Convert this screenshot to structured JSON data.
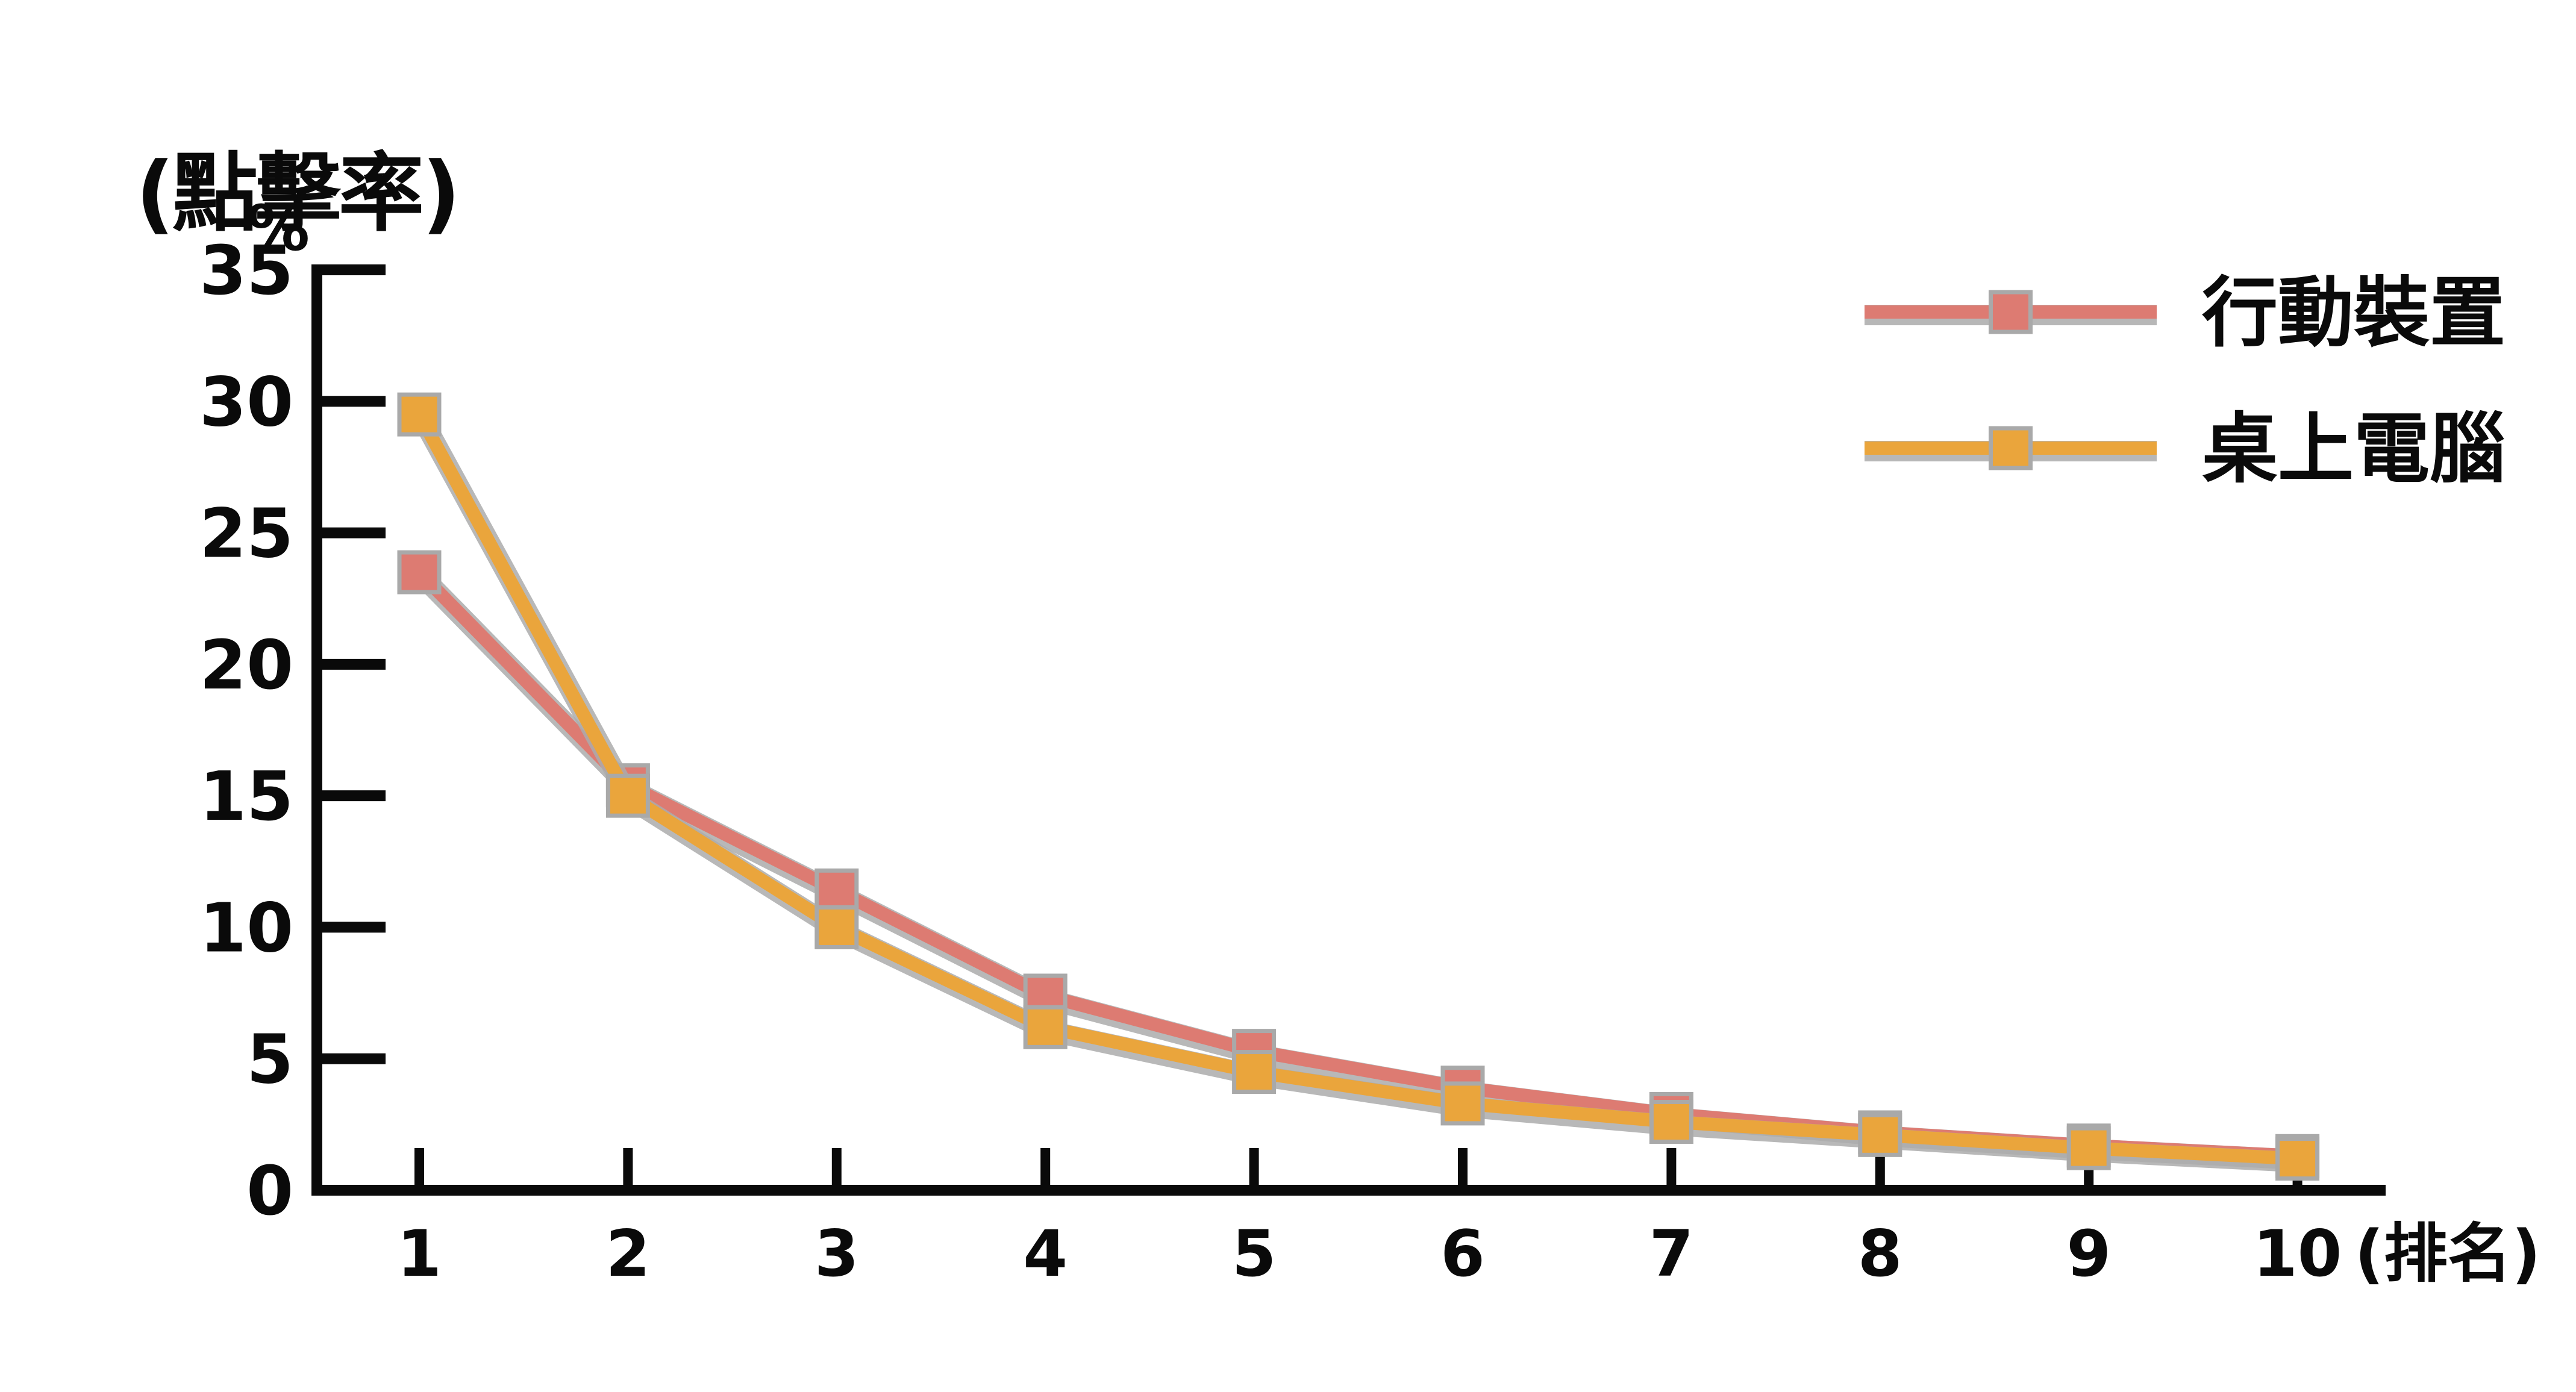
{
  "page": {
    "background": "#ffffff"
  },
  "chart_data": {
    "type": "line",
    "y_axis_title": "(點擊率)",
    "y_unit": "%",
    "x_axis_suffix": "(排名)",
    "x": [
      1,
      2,
      3,
      4,
      5,
      6,
      7,
      8,
      9,
      10
    ],
    "series": [
      {
        "name": "行動裝置",
        "color": "#DD7B72",
        "values": [
          23.5,
          15.4,
          11.4,
          7.4,
          5.3,
          3.9,
          2.9,
          2.2,
          1.7,
          1.3
        ]
      },
      {
        "name": "桌上電腦",
        "color": "#EAA53C",
        "values": [
          29.5,
          15.0,
          10.0,
          6.2,
          4.5,
          3.3,
          2.6,
          2.1,
          1.6,
          1.2
        ]
      }
    ],
    "ylim": [
      0,
      35
    ],
    "y_ticks": [
      0,
      5,
      10,
      15,
      20,
      25,
      30,
      35
    ],
    "xlabel": "",
    "ylabel": "",
    "grid": false,
    "legend_position": "top-right",
    "marker": "square",
    "marker_outline_color": "#A9A9A9",
    "line_shadow_color": "#ABABAB",
    "axis_color": "#0a0a0a"
  }
}
